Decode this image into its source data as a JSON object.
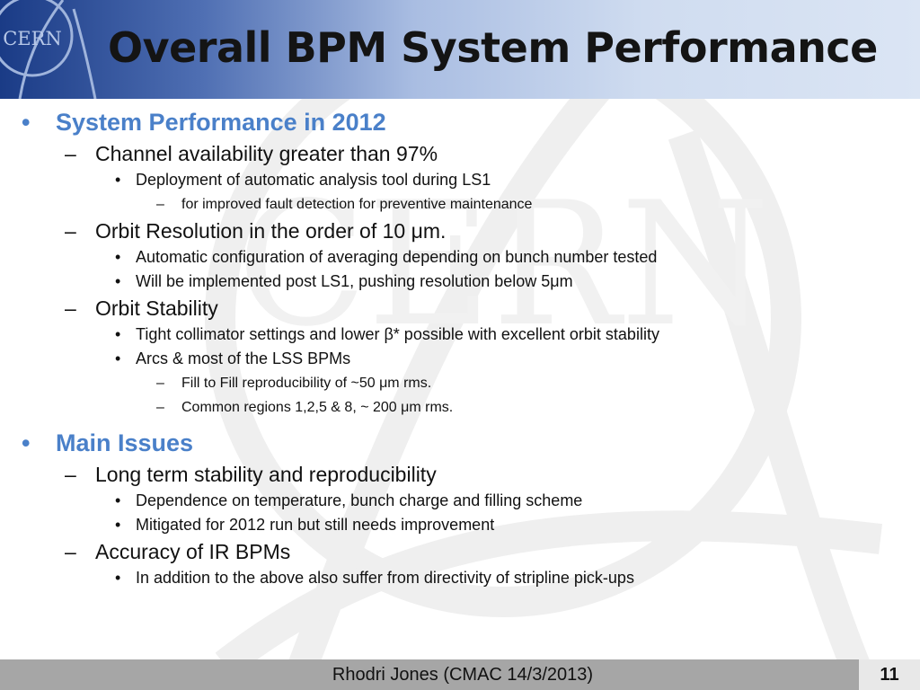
{
  "slide": {
    "title": "Overall BPM System Performance",
    "logo_text": "CERN",
    "watermark_text": "CERN",
    "accent_color": "#4a80c9",
    "header_gradient": [
      "#1a3b86",
      "#dbe5f4"
    ],
    "footer_color": "#a6a6a6"
  },
  "bullets": [
    {
      "text": "System Performance in 2012",
      "level": 1,
      "marker": "•"
    },
    {
      "text": "Channel availability greater than 97%",
      "level": 2,
      "marker": "–"
    },
    {
      "text": "Deployment of automatic analysis tool during LS1",
      "level": 3,
      "marker": "•"
    },
    {
      "text": "for improved fault detection for preventive maintenance",
      "level": 4,
      "marker": "–"
    },
    {
      "text": "Orbit Resolution in the order of 10 μm.",
      "level": 2,
      "marker": "–"
    },
    {
      "text": "Automatic configuration of averaging depending on bunch number tested",
      "level": 3,
      "marker": "•"
    },
    {
      "text": "Will be implemented post LS1, pushing resolution below 5μm",
      "level": 3,
      "marker": "•"
    },
    {
      "text": "Orbit Stability",
      "level": 2,
      "marker": "–"
    },
    {
      "text": "Tight collimator settings and lower β* possible with excellent orbit stability",
      "level": 3,
      "marker": "•"
    },
    {
      "text": "Arcs & most of the LSS BPMs",
      "level": 3,
      "marker": "•"
    },
    {
      "text": "Fill to Fill reproducibility of ~50 μm rms.",
      "level": 4,
      "marker": "–"
    },
    {
      "text": "Common regions 1,2,5 & 8, ~ 200 μm rms.",
      "level": 4,
      "marker": "–"
    },
    {
      "text": "Main Issues",
      "level": 1,
      "marker": "•"
    },
    {
      "text": "Long term stability and reproducibility",
      "level": 2,
      "marker": "–"
    },
    {
      "text": "Dependence on temperature, bunch charge and filling scheme",
      "level": 3,
      "marker": "•"
    },
    {
      "text": "Mitigated for 2012 run but still needs improvement",
      "level": 3,
      "marker": "•"
    },
    {
      "text": "Accuracy of IR BPMs",
      "level": 2,
      "marker": "–"
    },
    {
      "text": "In addition to the above also suffer from directivity of stripline pick-ups",
      "level": 3,
      "marker": "•"
    }
  ],
  "footer": {
    "text": "Rhodri Jones (CMAC 14/3/2013)",
    "page_number": "11"
  }
}
